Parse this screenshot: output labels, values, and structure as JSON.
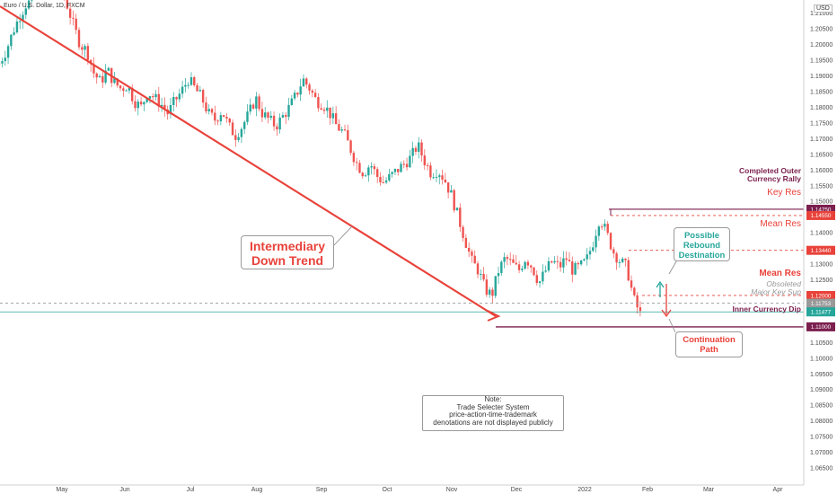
{
  "header": {
    "symbol_title": "Euro / U.S. Dollar, 1D, FXCM",
    "currency": "USD"
  },
  "chart_data": {
    "type": "candlestick",
    "ylim": [
      1.063,
      1.2125
    ],
    "y_ticks": [
      "1.21000",
      "1.20500",
      "1.20000",
      "1.19500",
      "1.19000",
      "1.18500",
      "1.18000",
      "1.17500",
      "1.17000",
      "1.16500",
      "1.16000",
      "1.15500",
      "1.15000",
      "1.14500",
      "1.14000",
      "1.13500",
      "1.13000",
      "1.12500",
      "1.12000",
      "1.11500",
      "1.11000",
      "1.10500",
      "1.10000",
      "1.09500",
      "1.09000",
      "1.08500",
      "1.08000",
      "1.07500",
      "1.07000",
      "1.06500"
    ],
    "x_ticks": [
      "May",
      "Jun",
      "Jul",
      "Aug",
      "Sep",
      "Oct",
      "Nov",
      "Dec",
      "2022",
      "Feb",
      "Mar",
      "Apr"
    ],
    "price_path": [
      1.194,
      1.198,
      1.204,
      1.209,
      1.213,
      1.214,
      1.218,
      1.221,
      1.22,
      1.218,
      1.213,
      1.206,
      1.2,
      1.198,
      1.191,
      1.188,
      1.192,
      1.188,
      1.186,
      1.187,
      1.182,
      1.18,
      1.185,
      1.183,
      1.181,
      1.178,
      1.182,
      1.185,
      1.189,
      1.186,
      1.183,
      1.178,
      1.176,
      1.179,
      1.174,
      1.171,
      1.174,
      1.178,
      1.183,
      1.178,
      1.176,
      1.174,
      1.177,
      1.18,
      1.184,
      1.189,
      1.186,
      1.182,
      1.181,
      1.178,
      1.174,
      1.172,
      1.167,
      1.162,
      1.159,
      1.162,
      1.158,
      1.156,
      1.158,
      1.16,
      1.162,
      1.164,
      1.168,
      1.163,
      1.159,
      1.16,
      1.157,
      1.152,
      1.145,
      1.138,
      1.131,
      1.128,
      1.122,
      1.12,
      1.128,
      1.132,
      1.13,
      1.128,
      1.132,
      1.129,
      1.124,
      1.128,
      1.131,
      1.129,
      1.132,
      1.128,
      1.129,
      1.131,
      1.137,
      1.145,
      1.14,
      1.134,
      1.131,
      1.129,
      1.119,
      1.114
    ],
    "levels": [
      {
        "label": "Completed Outer Currency Rally",
        "price": "1.14750",
        "color": "#7b1f4e"
      },
      {
        "label": "Key Res",
        "price": "1.14550",
        "color": "#e8423a"
      },
      {
        "label": "Mean Res",
        "price": "1.13440",
        "color": "#e8423a"
      },
      {
        "label": "Mean Res",
        "price": "1.12000",
        "color": "#e8423a"
      },
      {
        "label": "Obsoleted Major Key Sup",
        "price": "1.11753",
        "color": "#999999"
      },
      {
        "label": "",
        "price": "1.11477",
        "color": "#26a69a"
      },
      {
        "label": "Inner Currency Dip",
        "price": "1.11000",
        "color": "#7b1f4e"
      }
    ]
  },
  "annotations": {
    "intermediary_line1": "Intermediary",
    "intermediary_line2": "Down Trend",
    "completed_line1": "Completed Outer",
    "completed_line2": "Currency Rally",
    "key_res": "Key Res",
    "mean_res_upper": "Mean Res",
    "mean_res_lower": "Mean Res",
    "obsoleted_line1": "Obsoleted",
    "obsoleted_line2": "Major Key Sup",
    "inner_dip": "Inner Currency Dip",
    "rebound_line1": "Possible",
    "rebound_line2": "Rebound",
    "rebound_line3": "Destination",
    "continuation_line1": "Continuation",
    "continuation_line2": "Path",
    "note_title": "Note:",
    "note_line1": "Trade Selecter System",
    "note_line2": "price-action-time-trademark",
    "note_line3": "denotations are not displayed publicly"
  },
  "colors": {
    "bull": "#26a69a",
    "bear": "#ef5350",
    "trend": "#e8423a",
    "rally": "#7b1f4e",
    "gray_level": "#999999"
  }
}
